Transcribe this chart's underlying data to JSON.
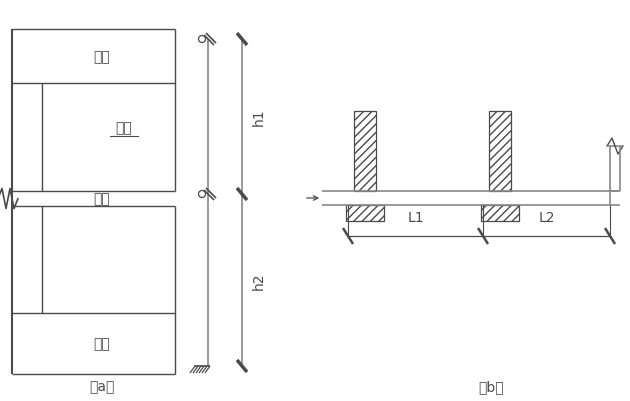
{
  "bg_color": "#ffffff",
  "line_color": "#4a4a4a",
  "gray_line": "#888888",
  "label_a": "（a）",
  "label_b": "（b）",
  "text_dingban": "顶板",
  "text_cebi": "側壁",
  "text_loban": "楼板",
  "text_diban": "底板",
  "text_h1": "h1",
  "text_h2": "h2",
  "text_L1": "L1",
  "text_L2": "L2",
  "font_size": 10,
  "font_size_label": 10
}
